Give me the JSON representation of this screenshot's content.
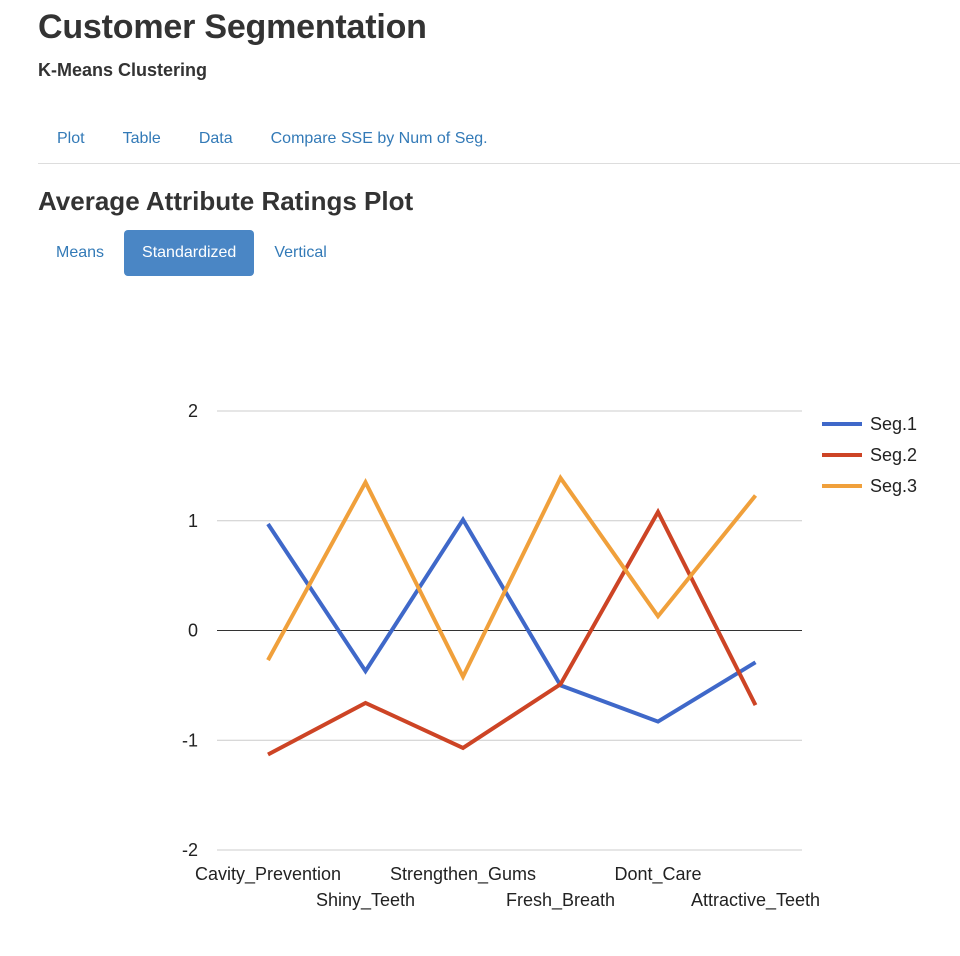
{
  "header": {
    "title": "Customer Segmentation",
    "subtitle": "K-Means Clustering"
  },
  "main_tabs": [
    {
      "label": "Plot"
    },
    {
      "label": "Table"
    },
    {
      "label": "Data"
    },
    {
      "label": "Compare SSE by Num of Seg."
    }
  ],
  "section": {
    "title": "Average Attribute Ratings Plot"
  },
  "plot_tabs": [
    {
      "label": "Means",
      "active": false
    },
    {
      "label": "Standardized",
      "active": true
    },
    {
      "label": "Vertical",
      "active": false
    }
  ],
  "colors": {
    "accent": "#337ab7",
    "active_pill": "#4a86c5"
  },
  "chart_data": {
    "type": "line",
    "categories": [
      "Cavity_Prevention",
      "Shiny_Teeth",
      "Strengthen_Gums",
      "Fresh_Breath",
      "Dont_Care",
      "Attractive_Teeth"
    ],
    "series": [
      {
        "name": "Seg.1",
        "color": "#3f68c9",
        "values": [
          0.97,
          -0.37,
          1.01,
          -0.5,
          -0.83,
          -0.29
        ]
      },
      {
        "name": "Seg.2",
        "color": "#cd4425",
        "values": [
          -1.13,
          -0.66,
          -1.07,
          -0.49,
          1.08,
          -0.68
        ]
      },
      {
        "name": "Seg.3",
        "color": "#f0a03b",
        "values": [
          -0.27,
          1.35,
          -0.42,
          1.39,
          0.13,
          1.23
        ]
      }
    ],
    "y_ticks": [
      "2",
      "1",
      "0",
      "-1",
      "-2"
    ],
    "ylim": [
      -2,
      2
    ],
    "grid": true,
    "legend_position": "right"
  }
}
